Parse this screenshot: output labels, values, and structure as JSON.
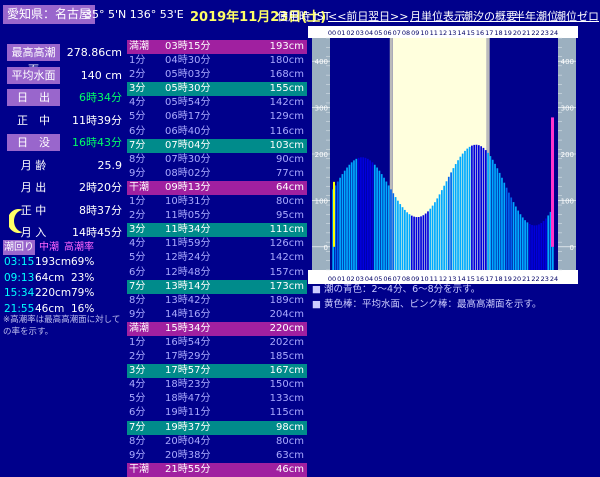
{
  "header": {
    "location": "愛知県：名古屋",
    "coords": "35° 5'N 136° 53'E",
    "date": "2019年11月23日(土)",
    "tz": "使用時 JST",
    "nav": [
      "<<前日",
      "翌日>>",
      "月単位表示",
      "潮汐の概要",
      "半年潮位",
      "潮位ゼロ"
    ]
  },
  "info": [
    {
      "label": "最高高潮面",
      "value": "278.86cm",
      "style": "purple",
      "color": "#ffffff"
    },
    {
      "label": "平均水面",
      "value": "140 cm",
      "style": "purple",
      "color": "#ffffff"
    },
    {
      "label": "日　出",
      "value": "6時34分",
      "style": "purple",
      "color": "#00ff66"
    },
    {
      "label": "正　中",
      "value": "11時39分",
      "style": "plain",
      "color": "#ffffff"
    },
    {
      "label": "日　没",
      "value": "16時43分",
      "style": "purple",
      "color": "#00ff66"
    },
    {
      "label": "月 齢",
      "value": "25.9",
      "style": "plain",
      "color": "#ffffff"
    },
    {
      "label": "月 出",
      "value": "2時20分",
      "style": "plain",
      "color": "#ffffff"
    },
    {
      "label": "正 中",
      "value": "8時37分",
      "style": "plain",
      "color": "#ffffff"
    },
    {
      "label": "月 入",
      "value": "14時45分",
      "style": "plain",
      "color": "#ffffff"
    }
  ],
  "highlow": {
    "headers": [
      "潮回り",
      "中潮",
      "高潮率"
    ],
    "rows": [
      {
        "time": "03:15",
        "value": "193cm",
        "pct": "69%"
      },
      {
        "time": "09:13",
        "value": "64cm",
        "pct": "23%"
      },
      {
        "time": "15:34",
        "value": "220cm",
        "pct": "79%"
      },
      {
        "time": "21:55",
        "value": "46cm",
        "pct": "16%"
      }
    ],
    "note": "※高潮率は最高高潮面に対しての率を示す。"
  },
  "table": [
    {
      "c1": "満潮",
      "c2": "03時15分",
      "c3": "193cm",
      "kind": "high"
    },
    {
      "c1": "1分",
      "c2": "04時30分",
      "c3": "180cm",
      "kind": "normal"
    },
    {
      "c1": "2分",
      "c2": "05時03分",
      "c3": "168cm",
      "kind": "normal"
    },
    {
      "c1": "3分",
      "c2": "05時30分",
      "c3": "155cm",
      "kind": "teal"
    },
    {
      "c1": "4分",
      "c2": "05時54分",
      "c3": "142cm",
      "kind": "normal"
    },
    {
      "c1": "5分",
      "c2": "06時17分",
      "c3": "129cm",
      "kind": "normal"
    },
    {
      "c1": "6分",
      "c2": "06時40分",
      "c3": "116cm",
      "kind": "normal"
    },
    {
      "c1": "7分",
      "c2": "07時04分",
      "c3": "103cm",
      "kind": "teal"
    },
    {
      "c1": "8分",
      "c2": "07時30分",
      "c3": "90cm",
      "kind": "normal"
    },
    {
      "c1": "9分",
      "c2": "08時02分",
      "c3": "77cm",
      "kind": "normal"
    },
    {
      "c1": "干潮",
      "c2": "09時13分",
      "c3": "64cm",
      "kind": "low"
    },
    {
      "c1": "1分",
      "c2": "10時31分",
      "c3": "80cm",
      "kind": "normal"
    },
    {
      "c1": "2分",
      "c2": "11時05分",
      "c3": "95cm",
      "kind": "normal"
    },
    {
      "c1": "3分",
      "c2": "11時34分",
      "c3": "111cm",
      "kind": "teal"
    },
    {
      "c1": "4分",
      "c2": "11時59分",
      "c3": "126cm",
      "kind": "normal"
    },
    {
      "c1": "5分",
      "c2": "12時24分",
      "c3": "142cm",
      "kind": "normal"
    },
    {
      "c1": "6分",
      "c2": "12時48分",
      "c3": "157cm",
      "kind": "normal"
    },
    {
      "c1": "7分",
      "c2": "13時14分",
      "c3": "173cm",
      "kind": "teal"
    },
    {
      "c1": "8分",
      "c2": "13時42分",
      "c3": "189cm",
      "kind": "normal"
    },
    {
      "c1": "9分",
      "c2": "14時16分",
      "c3": "204cm",
      "kind": "normal"
    },
    {
      "c1": "満潮",
      "c2": "15時34分",
      "c3": "220cm",
      "kind": "high"
    },
    {
      "c1": "1分",
      "c2": "16時54分",
      "c3": "202cm",
      "kind": "normal"
    },
    {
      "c1": "2分",
      "c2": "17時29分",
      "c3": "185cm",
      "kind": "normal"
    },
    {
      "c1": "3分",
      "c2": "17時57分",
      "c3": "167cm",
      "kind": "teal"
    },
    {
      "c1": "4分",
      "c2": "18時23分",
      "c3": "150cm",
      "kind": "normal"
    },
    {
      "c1": "5分",
      "c2": "18時47分",
      "c3": "133cm",
      "kind": "normal"
    },
    {
      "c1": "6分",
      "c2": "19時11分",
      "c3": "115cm",
      "kind": "normal"
    },
    {
      "c1": "7分",
      "c2": "19時37分",
      "c3": "98cm",
      "kind": "teal"
    },
    {
      "c1": "8分",
      "c2": "20時04分",
      "c3": "80cm",
      "kind": "normal"
    },
    {
      "c1": "9分",
      "c2": "20時38分",
      "c3": "63cm",
      "kind": "normal"
    },
    {
      "c1": "干潮",
      "c2": "21時55分",
      "c3": "46cm",
      "kind": "low"
    }
  ],
  "chart_data": {
    "type": "bar",
    "x_ticks": [
      "00",
      "01",
      "02",
      "03",
      "04",
      "05",
      "06",
      "07",
      "08",
      "09",
      "10",
      "11",
      "12",
      "13",
      "14",
      "15",
      "16",
      "17",
      "18",
      "19",
      "20",
      "21",
      "22",
      "23",
      "24"
    ],
    "y_ticks": [
      0,
      100,
      200,
      300,
      400
    ],
    "ylim": [
      -50,
      450
    ],
    "daylight": [
      6.57,
      16.72
    ],
    "mean_level": 140,
    "highest_level": 278.86,
    "extremes": [
      {
        "t": 3.25,
        "v": 193
      },
      {
        "t": 9.22,
        "v": 64
      },
      {
        "t": 15.57,
        "v": 220
      },
      {
        "t": 21.92,
        "v": 46
      }
    ],
    "colors": {
      "light": "#00aaff",
      "dark": "#0000dd",
      "mid": "#0066ee",
      "day": "#ffffdd",
      "mean": "#ffff00",
      "high": "#ff33cc"
    }
  },
  "legend": [
    "潮の青色：2～4分、6～8分を示す。",
    "黄色棒：平均水面、ピンク棒：最高高潮面を示す。"
  ]
}
